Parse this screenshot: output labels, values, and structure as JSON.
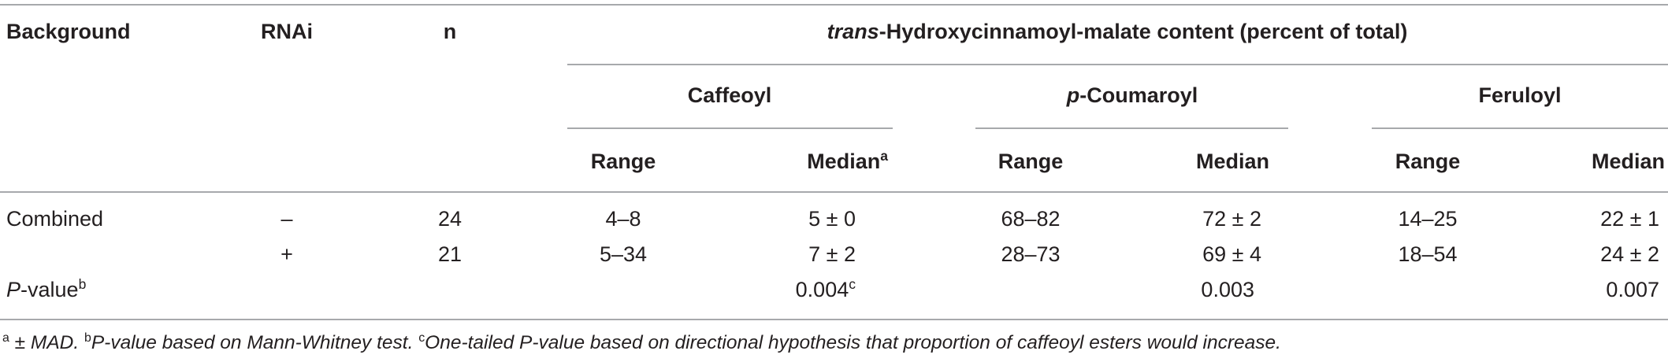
{
  "headers": {
    "background": "Background",
    "rnai": "RNAi",
    "n": "n",
    "group_title_italic": "trans",
    "group_title_rest": "-Hydroxycinnamoyl-malate content (percent of total)",
    "caffeoyl": "Caffeoyl",
    "p_coumaroyl_italic": "p",
    "p_coumaroyl_rest": "-Coumaroyl",
    "feruloyl": "Feruloyl",
    "range": "Range",
    "median": "Median",
    "median_sup": "a"
  },
  "rows": [
    {
      "background": "Combined",
      "rnai": "–",
      "n": "24",
      "caffeoyl_range": "4–8",
      "caffeoyl_median": "5 ± 0",
      "coumaroyl_range": "68–82",
      "coumaroyl_median": "72 ± 2",
      "feruloyl_range": "14–25",
      "feruloyl_median": "22 ± 1"
    },
    {
      "background": "",
      "rnai": "+",
      "n": "21",
      "caffeoyl_range": "5–34",
      "caffeoyl_median": "7 ± 2",
      "coumaroyl_range": "28–73",
      "coumaroyl_median": "69 ± 4",
      "feruloyl_range": "18–54",
      "feruloyl_median": "24 ± 2"
    }
  ],
  "pvalue_row": {
    "label_italic": "P",
    "label_rest": "-value",
    "label_sup": "b",
    "caffeoyl": "0.004",
    "caffeoyl_sup": "c",
    "coumaroyl": "0.003",
    "feruloyl": "0.007"
  },
  "footnote": {
    "a_sup": "a",
    "a_text": " ± MAD. ",
    "b_sup": "b",
    "b_text": "P-value based on Mann-Whitney test. ",
    "c_sup": "c",
    "c_text": "One-tailed P-value based on directional hypothesis that proportion of caffeoyl esters would increase."
  }
}
